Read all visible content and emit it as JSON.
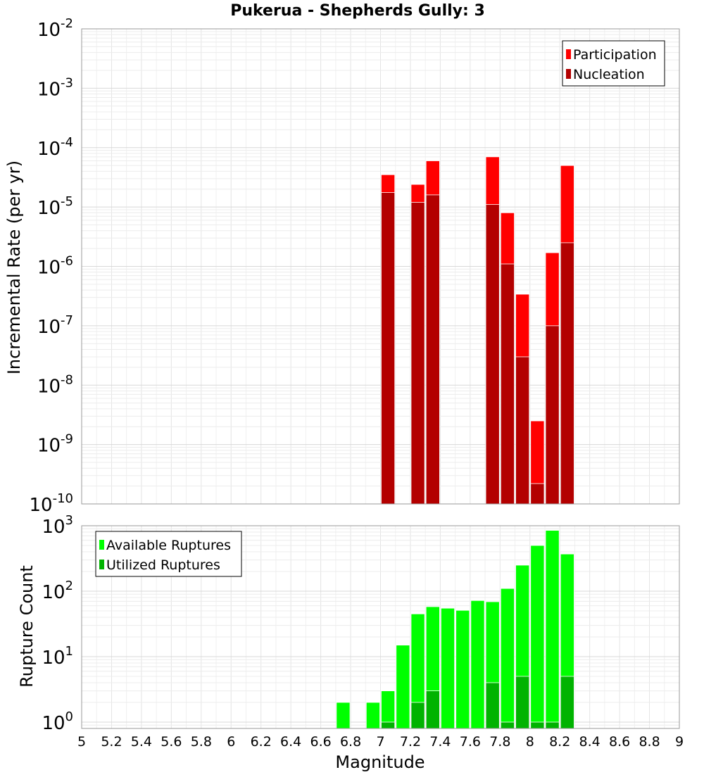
{
  "chart_data": [
    {
      "type": "bar",
      "title": "Pukerua - Shepherds Gully: 3",
      "ylabel": "Incremental Rate (per yr)",
      "yscale": "log",
      "ylim": [
        1e-10,
        0.01
      ],
      "ytick_exponents": [
        "-2",
        "-3",
        "-4",
        "-5",
        "-6",
        "-7",
        "-8",
        "-9",
        "-10"
      ],
      "legend_position": "top-right",
      "series": [
        {
          "name": "Participation",
          "color": "#ff0000",
          "x": [
            7.05,
            7.25,
            7.35,
            7.75,
            7.85,
            7.95,
            8.05,
            8.15,
            8.25
          ],
          "values": [
            3.5e-05,
            2.4e-05,
            6e-05,
            7e-05,
            8e-06,
            3.4e-07,
            2.5e-09,
            1.7e-06,
            5e-05
          ]
        },
        {
          "name": "Nucleation",
          "color": "#b30000",
          "x": [
            7.05,
            7.25,
            7.35,
            7.75,
            7.85,
            7.95,
            8.05,
            8.15,
            8.25
          ],
          "values": [
            1.75e-05,
            1.2e-05,
            1.6e-05,
            1.1e-05,
            1.1e-06,
            3e-08,
            2.2e-10,
            1e-07,
            2.5e-06
          ]
        }
      ]
    },
    {
      "type": "bar",
      "xlabel": "Magnitude",
      "ylabel": "Rupture Count",
      "yscale": "log",
      "ylim": [
        0.8,
        1000
      ],
      "ytick_exponents": [
        "3",
        "2",
        "1",
        "0"
      ],
      "xlim": [
        5,
        9
      ],
      "xticks": [
        "5",
        "5.2",
        "5.4",
        "5.6",
        "5.8",
        "6",
        "6.2",
        "6.4",
        "6.6",
        "6.8",
        "7",
        "7.2",
        "7.4",
        "7.6",
        "7.8",
        "8",
        "8.2",
        "8.4",
        "8.6",
        "8.8",
        "9"
      ],
      "legend_position": "top-left",
      "series": [
        {
          "name": "Available Ruptures",
          "color": "#00ff00",
          "x": [
            6.75,
            6.95,
            7.05,
            7.15,
            7.25,
            7.35,
            7.45,
            7.55,
            7.65,
            7.75,
            7.85,
            7.95,
            8.05,
            8.15,
            8.25
          ],
          "values": [
            2,
            2,
            3,
            15,
            45,
            58,
            55,
            51,
            72,
            69,
            110,
            250,
            500,
            850,
            370
          ]
        },
        {
          "name": "Utilized Ruptures",
          "color": "#00b300",
          "x": [
            7.05,
            7.25,
            7.35,
            7.75,
            7.85,
            7.95,
            8.05,
            8.15,
            8.25
          ],
          "values": [
            1,
            2,
            3,
            4,
            1,
            5,
            1,
            1,
            5
          ]
        }
      ]
    }
  ]
}
